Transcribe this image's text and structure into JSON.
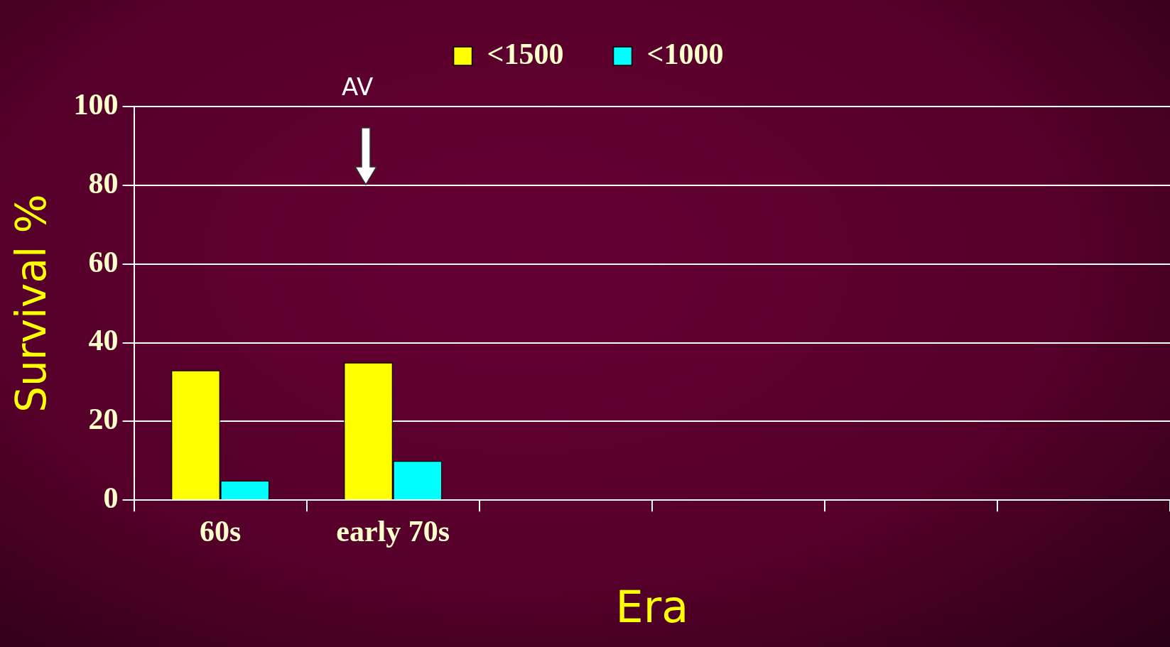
{
  "chart_data": {
    "type": "bar",
    "xlabel": "Era",
    "ylabel": "Survival %",
    "categories": [
      "60s",
      "early 70s",
      null,
      null,
      null,
      null
    ],
    "series": [
      {
        "name": "<1500",
        "color": "#ffff00",
        "values": [
          33,
          35,
          null,
          null,
          null,
          null
        ]
      },
      {
        "name": "<1000",
        "color": "#00ffff",
        "values": [
          5,
          10,
          null,
          null,
          null,
          null
        ]
      }
    ],
    "ylim": [
      0,
      100
    ],
    "yticks": [
      0,
      20,
      40,
      60,
      80,
      100
    ],
    "grid": "y",
    "legend": "top",
    "annotations": [
      "AV"
    ]
  }
}
